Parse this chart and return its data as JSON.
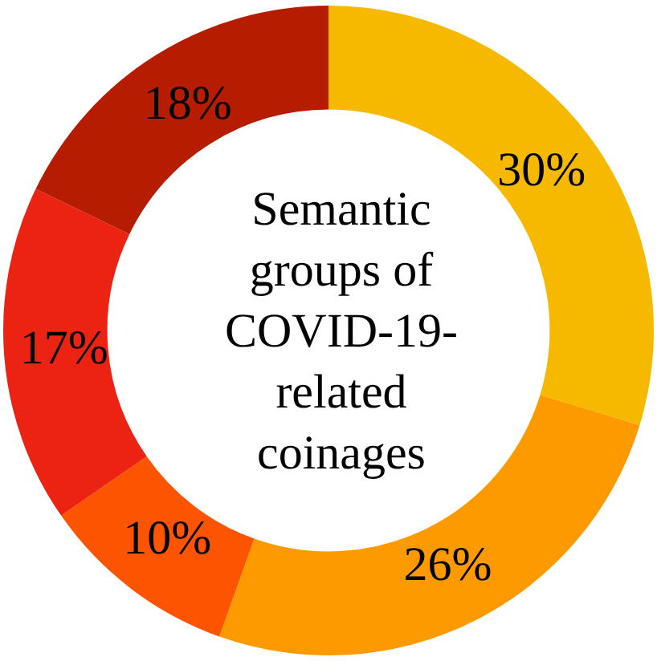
{
  "chart_data": {
    "type": "donut",
    "title": "Semantic groups of COVID-19-related coinages",
    "categories": [
      null,
      null,
      null,
      null,
      null
    ],
    "values": [
      30,
      26,
      10,
      17,
      18
    ],
    "colors": [
      "#f7b900",
      "#fc9a00",
      "#fc5400",
      "#ec2312",
      "#b61c00"
    ],
    "value_labels": [
      "30%",
      "26%",
      "10%",
      "17%",
      "18%"
    ],
    "legend": false
  }
}
